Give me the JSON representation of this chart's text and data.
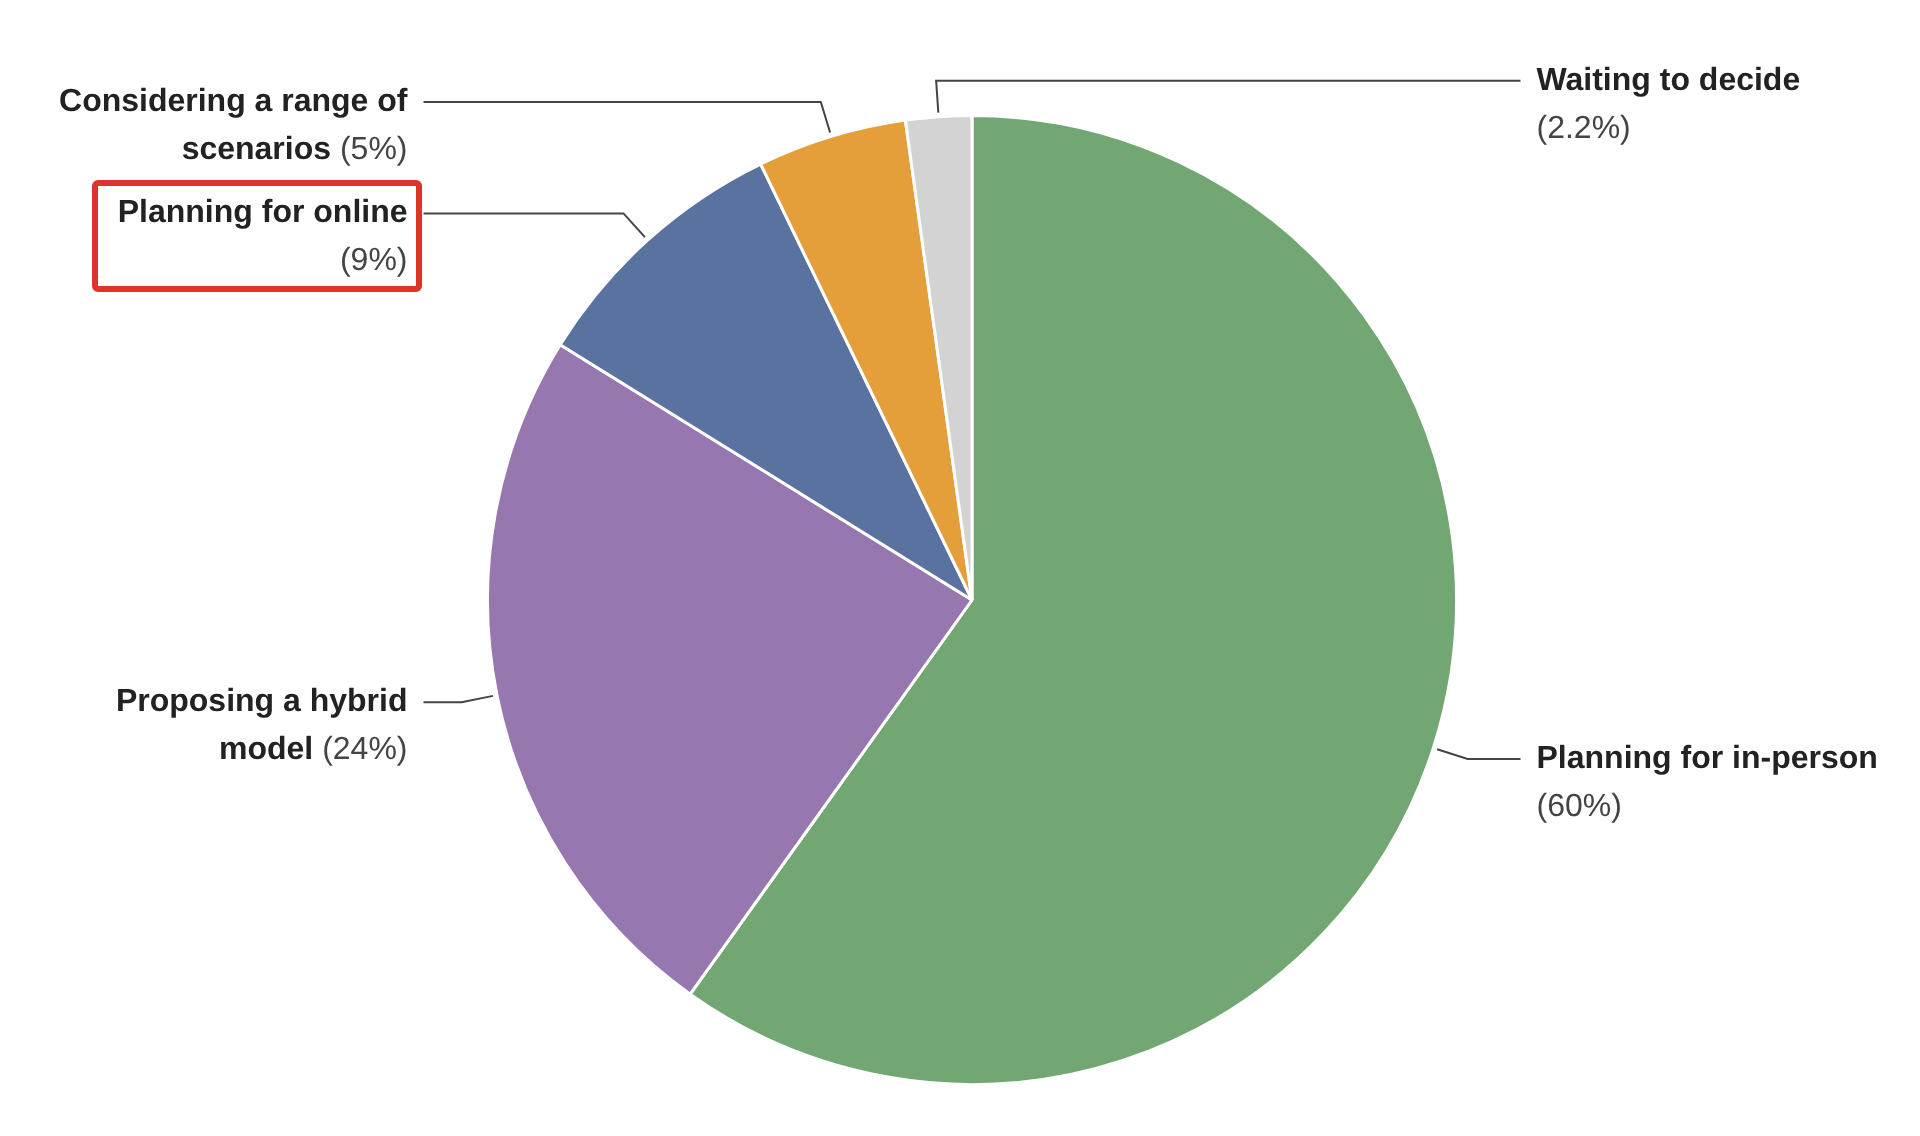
{
  "chart_data": {
    "type": "pie",
    "categories": [
      "Planning for in-person",
      "Proposing a hybrid model",
      "Planning for online",
      "Considering a range of scenarios",
      "Waiting to decide"
    ],
    "values": [
      60,
      24,
      9,
      5,
      2.2
    ],
    "value_labels": [
      "(60%)",
      "(24%)",
      "(9%)",
      "(5%)",
      "(2.2%)"
    ],
    "colors": [
      "#72a673",
      "#9677b0",
      "#5a72a0",
      "#e49e3a",
      "#d3d3d3"
    ],
    "legend": false
  }
}
